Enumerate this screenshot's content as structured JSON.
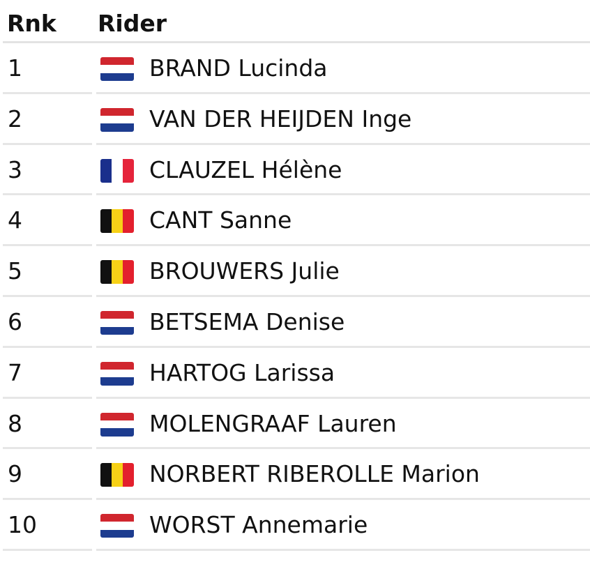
{
  "header": {
    "rank_label": "Rnk",
    "rider_label": "Rider"
  },
  "flag_colors": {
    "nl": [
      "#d0262e",
      "#ffffff",
      "#1d3c8f"
    ],
    "fr": [
      "#1a2f8c",
      "#ffffff",
      "#e5243b"
    ],
    "be": [
      "#111111",
      "#f7d117",
      "#e3202d"
    ]
  },
  "riders": [
    {
      "rank": "1",
      "flag": "nl",
      "name": "BRAND Lucinda"
    },
    {
      "rank": "2",
      "flag": "nl",
      "name": "VAN DER HEIJDEN Inge"
    },
    {
      "rank": "3",
      "flag": "fr",
      "name": "CLAUZEL Hélène"
    },
    {
      "rank": "4",
      "flag": "be",
      "name": "CANT Sanne"
    },
    {
      "rank": "5",
      "flag": "be",
      "name": "BROUWERS Julie"
    },
    {
      "rank": "6",
      "flag": "nl",
      "name": "BETSEMA Denise"
    },
    {
      "rank": "7",
      "flag": "nl",
      "name": "HARTOG Larissa"
    },
    {
      "rank": "8",
      "flag": "nl",
      "name": "MOLENGRAAF Lauren"
    },
    {
      "rank": "9",
      "flag": "be",
      "name": "NORBERT RIBEROLLE Marion"
    },
    {
      "rank": "10",
      "flag": "nl",
      "name": "WORST Annemarie"
    }
  ]
}
